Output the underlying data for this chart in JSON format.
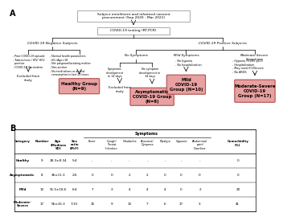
{
  "flowchart": {
    "top_box": "Subject enrollment and informed consent\nprocurement (Sep 2020 - Mar 2021)",
    "rt_pcr": "COVID-19 testing (RT-PCR)",
    "neg_subjects": "COVID-19 Negative Subjects",
    "pos_subjects": "COVID-19 Positive Subjects",
    "no_symptoms": "No Symptoms",
    "mild_symptoms": "Mild Symptoms",
    "mod_severe_symptoms": "Moderate-Severe\nSymptoms",
    "excl1_criteria": "- Prior COVID-19 episode\n- Tuberculosis / HIV/ HCV\n  positive\n- COVID-19 Vaccination",
    "excl1_label": "Excluded from\nstudy",
    "incl_criteria": "- Normal health parameters\n- 60>Age>18\n- Not pregnant/lactating mother\n- Non-smoker\n- No medications or alcohol\n  consumption in last 24 hours",
    "healthy_box": "Healthy Group\n(N=9)",
    "symp_dev": "Symptoms\ndevelopment\nin 14 days",
    "excl2_label": "Excluded from\nstudy",
    "no_symp_dev": "No symptom\ndevelopment in\n14 days",
    "asymp_box": "Asymptomatic\nCOVID-19 Group\n(N=8)",
    "mild_criteria": "- No hypoxia\n- No hospitalization",
    "mild_box": "Mild\nCOVID-19\nGroup (N=10)",
    "mod_criteria": "- Hypoxia (<94% pO2)\n- Hospitalization\n- May need ICU/Severe\n- No ARDS",
    "mod_box": "Moderate-Severe\nCOVID-19\nGroup (N=17)"
  },
  "table": {
    "col_headers_top": [
      "Category",
      "Number",
      "Age\n(Medians\nSD)",
      "Sex\nratio\n(M:F)",
      "Symptoms",
      "Comorbidity\n(%)"
    ],
    "symptom_subcols": [
      "Fever",
      "Cough/\nThroat\nIrritation",
      "Headache",
      "Anosmia/\nDyspnea",
      "Myalgia",
      "Hypoxia",
      "Abdominal\npain/\nDiarrhea"
    ],
    "rows": [
      [
        "Healthy",
        "9",
        "28.3±8.34",
        "5:4",
        "-",
        "-",
        "-",
        "-",
        "-",
        "-",
        "-",
        "0"
      ],
      [
        "Asymptomatic",
        "8",
        "36±11.3",
        "2:6",
        "0",
        "0",
        "2",
        "2",
        "0",
        "0",
        "0",
        "0"
      ],
      [
        "Mild",
        "10",
        "51.5±18.6",
        "6:4",
        "7",
        "3",
        "4",
        "4",
        "4",
        "0",
        "2",
        "20"
      ],
      [
        "Moderate-\nSevere",
        "17",
        "56±16.3",
        "7:10",
        "15",
        "9",
        "10",
        "7",
        "6",
        "17",
        "3",
        "41"
      ]
    ]
  },
  "colors": {
    "box_fill": "#e8a0a0",
    "box_edge": "#b05050"
  }
}
